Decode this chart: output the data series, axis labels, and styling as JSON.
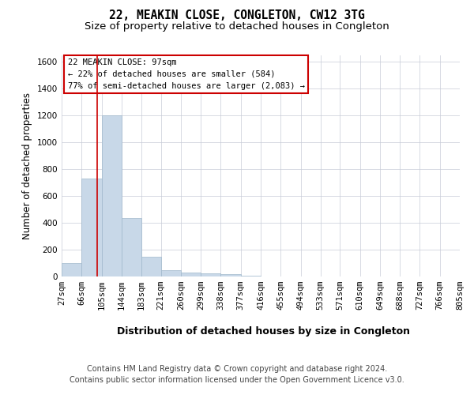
{
  "title_line1": "22, MEAKIN CLOSE, CONGLETON, CW12 3TG",
  "title_line2": "Size of property relative to detached houses in Congleton",
  "xlabel": "Distribution of detached houses by size in Congleton",
  "ylabel": "Number of detached properties",
  "footer_line1": "Contains HM Land Registry data © Crown copyright and database right 2024.",
  "footer_line2": "Contains public sector information licensed under the Open Government Licence v3.0.",
  "annotation_line1": "22 MEAKIN CLOSE: 97sqm",
  "annotation_line2": "← 22% of detached houses are smaller (584)",
  "annotation_line3": "77% of semi-detached houses are larger (2,083) →",
  "bar_edges": [
    27,
    66,
    105,
    144,
    183,
    221,
    260,
    299,
    338,
    377,
    416,
    455,
    494,
    533,
    571,
    610,
    649,
    688,
    727,
    766,
    805
  ],
  "bar_heights": [
    100,
    730,
    1200,
    435,
    145,
    50,
    30,
    25,
    15,
    5,
    0,
    0,
    0,
    0,
    0,
    0,
    0,
    0,
    0,
    0
  ],
  "bar_color": "#c8d8e8",
  "bar_edge_color": "#a0b8cc",
  "property_line_x": 97,
  "property_line_color": "#cc0000",
  "annotation_box_color": "#cc0000",
  "ylim": [
    0,
    1650
  ],
  "yticks": [
    0,
    200,
    400,
    600,
    800,
    1000,
    1200,
    1400,
    1600
  ],
  "background_color": "#ffffff",
  "grid_color": "#c8ccd8",
  "title_fontsize": 10.5,
  "subtitle_fontsize": 9.5,
  "ylabel_fontsize": 8.5,
  "xlabel_fontsize": 9,
  "tick_fontsize": 7.5,
  "annotation_fontsize": 7.5,
  "footer_fontsize": 7
}
